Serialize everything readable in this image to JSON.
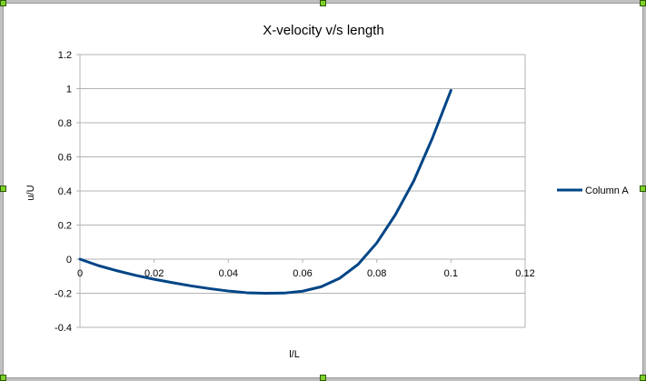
{
  "chart_data": {
    "type": "line",
    "title": "X-velocity v/s length",
    "xlabel": "l/L",
    "ylabel": "u/U",
    "xlim": [
      0,
      0.12
    ],
    "ylim": [
      -0.4,
      1.2
    ],
    "x_ticks": [
      "0",
      "0.02",
      "0.04",
      "0.06",
      "0.08",
      "0.1",
      "0.12"
    ],
    "y_ticks": [
      "-0.4",
      "-0.2",
      "0",
      "0.2",
      "0.4",
      "0.6",
      "0.8",
      "1",
      "1.2"
    ],
    "grid": "horizontal",
    "legend_position": "right",
    "series": [
      {
        "name": "Column A",
        "color": "#004586",
        "x": [
          0,
          0.005,
          0.01,
          0.015,
          0.02,
          0.025,
          0.03,
          0.035,
          0.04,
          0.045,
          0.05,
          0.055,
          0.06,
          0.065,
          0.07,
          0.075,
          0.08,
          0.085,
          0.09,
          0.095,
          0.1
        ],
        "y": [
          0,
          -0.038,
          -0.068,
          -0.095,
          -0.118,
          -0.138,
          -0.157,
          -0.173,
          -0.187,
          -0.197,
          -0.2,
          -0.199,
          -0.188,
          -0.162,
          -0.112,
          -0.03,
          0.095,
          0.26,
          0.46,
          0.71,
          0.99
        ]
      }
    ]
  }
}
